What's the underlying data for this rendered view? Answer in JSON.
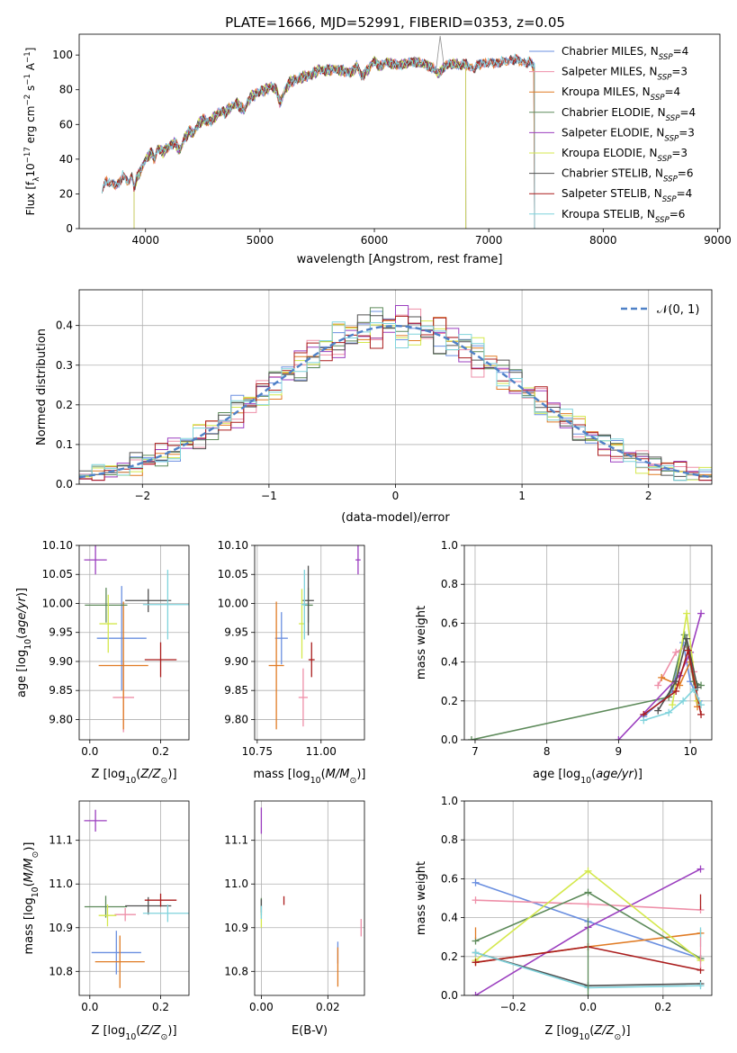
{
  "figure_title": "PLATE=1666, MJD=52991, FIBERID=0353, z=0.05",
  "palette": [
    "#6a8fe0",
    "#ee8fa8",
    "#e07b24",
    "#5d8a5a",
    "#9b3fbf",
    "#d4e84c",
    "#505050",
    "#aa1c1c",
    "#7fd3dc"
  ],
  "chart_data": [
    {
      "id": "spectrum",
      "type": "line",
      "title": "PLATE=1666, MJD=52991, FIBERID=0353, z=0.05",
      "xlabel": "wavelength [Angstrom, rest frame]",
      "ylabel": "Flux [f",
      "ylabel_suffix": "10",
      "ylabel_exp": "−17",
      "ylabel_units": " erg cm",
      "xlim": [
        3420,
        9020
      ],
      "ylim": [
        0,
        112
      ],
      "xticks": [
        4000,
        5000,
        6000,
        7000,
        8000,
        9000
      ],
      "yticks": [
        0,
        20,
        40,
        60,
        80,
        100
      ],
      "legend_position": "right",
      "spectrum_points": [
        [
          3620,
          22
        ],
        [
          3650,
          28
        ],
        [
          3700,
          25
        ],
        [
          3760,
          26
        ],
        [
          3800,
          30
        ],
        [
          3850,
          27
        ],
        [
          3880,
          31
        ],
        [
          3900,
          24
        ],
        [
          3930,
          30
        ],
        [
          3960,
          34
        ],
        [
          4000,
          40
        ],
        [
          4050,
          44
        ],
        [
          4080,
          40
        ],
        [
          4110,
          47
        ],
        [
          4150,
          44
        ],
        [
          4200,
          47
        ],
        [
          4250,
          50
        ],
        [
          4300,
          45
        ],
        [
          4340,
          52
        ],
        [
          4380,
          56
        ],
        [
          4420,
          55
        ],
        [
          4460,
          60
        ],
        [
          4500,
          63
        ],
        [
          4550,
          61
        ],
        [
          4600,
          64
        ],
        [
          4650,
          67
        ],
        [
          4700,
          67
        ],
        [
          4750,
          70
        ],
        [
          4800,
          72
        ],
        [
          4860,
          68
        ],
        [
          4920,
          76
        ],
        [
          4980,
          78
        ],
        [
          5050,
          80
        ],
        [
          5100,
          82
        ],
        [
          5150,
          79
        ],
        [
          5175,
          72
        ],
        [
          5220,
          80
        ],
        [
          5270,
          85
        ],
        [
          5330,
          86
        ],
        [
          5400,
          88
        ],
        [
          5460,
          89
        ],
        [
          5520,
          92
        ],
        [
          5580,
          91
        ],
        [
          5650,
          92
        ],
        [
          5720,
          91
        ],
        [
          5800,
          90
        ],
        [
          5850,
          94
        ],
        [
          5890,
          88
        ],
        [
          5950,
          92
        ],
        [
          6000,
          97
        ],
        [
          6050,
          93
        ],
        [
          6100,
          96
        ],
        [
          6150,
          95
        ],
        [
          6200,
          94
        ],
        [
          6280,
          95
        ],
        [
          6350,
          96
        ],
        [
          6420,
          95
        ],
        [
          6500,
          93
        ],
        [
          6563,
          89
        ],
        [
          6620,
          94
        ],
        [
          6700,
          95
        ],
        [
          6760,
          94
        ],
        [
          6800,
          95
        ],
        [
          6870,
          92
        ],
        [
          6950,
          96
        ],
        [
          7020,
          95
        ],
        [
          7080,
          96
        ],
        [
          7150,
          96
        ],
        [
          7200,
          98
        ],
        [
          7250,
          97
        ],
        [
          7300,
          96
        ],
        [
          7350,
          96
        ],
        [
          7400,
          93
        ]
      ],
      "series": [
        {
          "name": "Chabrier MILES",
          "n": "4",
          "start": 3640,
          "end": 7400
        },
        {
          "name": "Salpeter MILES",
          "n": "3",
          "start": 3640,
          "end": 7400
        },
        {
          "name": "Kroupa MILES",
          "n": "4",
          "start": 3640,
          "end": 7400
        },
        {
          "name": "Chabrier ELODIE",
          "n": "4",
          "start": 3900,
          "end": 6800
        },
        {
          "name": "Salpeter ELODIE",
          "n": "3",
          "start": 3900,
          "end": 6800
        },
        {
          "name": "Kroupa ELODIE",
          "n": "3",
          "start": 3900,
          "end": 6800
        },
        {
          "name": "Chabrier STELIB",
          "n": "6",
          "start": 3620,
          "end": 7400
        },
        {
          "name": "Salpeter STELIB",
          "n": "4",
          "start": 3620,
          "end": 7400
        },
        {
          "name": "Kroupa STELIB",
          "n": "6",
          "start": 3620,
          "end": 7400
        }
      ]
    },
    {
      "id": "residual_hist",
      "type": "line",
      "xlabel": "(data-model)/error",
      "ylabel": "Normed distribution",
      "xlim": [
        -2.5,
        2.5
      ],
      "ylim": [
        0,
        0.49
      ],
      "xticks": [
        -2,
        -1,
        0,
        1,
        2
      ],
      "yticks": [
        0.0,
        0.1,
        0.2,
        0.3,
        0.4
      ],
      "grid": true,
      "legend_position": "upper right",
      "legend": [
        "𝒩(0, 1)"
      ],
      "bin_width": 0.1
    },
    {
      "id": "age_vs_Z",
      "type": "scatter",
      "xlabel": "Z [log",
      "ylabel": "age  [log",
      "xlim": [
        -0.03,
        0.28
      ],
      "ylim": [
        9.765,
        10.1
      ],
      "xticks": [
        0.0,
        0.2
      ],
      "yticks": [
        9.8,
        9.85,
        9.9,
        9.95,
        10.0,
        10.05,
        10.1
      ],
      "grid": true,
      "points": [
        {
          "x": 0.09,
          "y": 9.94,
          "xerr": 0.07,
          "yerr": 0.09
        },
        {
          "x": 0.095,
          "y": 9.838,
          "xerr": 0.03,
          "yerr": 0.06
        },
        {
          "x": 0.095,
          "y": 9.893,
          "xerr": 0.07,
          "yerr": 0.11
        },
        {
          "x": 0.046,
          "y": 9.997,
          "xerr": 0.06,
          "yerr": 0.03
        },
        {
          "x": 0.016,
          "y": 10.075,
          "xerr": 0.032,
          "yerr": 0.025
        },
        {
          "x": 0.052,
          "y": 9.965,
          "xerr": 0.025,
          "yerr": 0.05
        },
        {
          "x": 0.165,
          "y": 10.005,
          "xerr": 0.065,
          "yerr": 0.02
        },
        {
          "x": 0.2,
          "y": 9.903,
          "xerr": 0.045,
          "yerr": 0.03
        },
        {
          "x": 0.22,
          "y": 9.998,
          "xerr": 0.07,
          "yerr": 0.06
        }
      ]
    },
    {
      "id": "age_vs_mass",
      "type": "scatter",
      "xlabel": "mass [log",
      "xlim": [
        10.74,
        11.17
      ],
      "ylim": [
        9.765,
        10.1
      ],
      "xticks": [
        10.75,
        11.0
      ],
      "yticks": [
        9.8,
        9.85,
        9.9,
        9.95,
        10.0,
        10.05,
        10.1
      ],
      "grid": true,
      "points": [
        {
          "x": 10.845,
          "y": 9.94,
          "xerr": 0.025,
          "yerr": 0.045
        },
        {
          "x": 10.93,
          "y": 9.838,
          "xerr": 0.018,
          "yerr": 0.05
        },
        {
          "x": 10.825,
          "y": 9.893,
          "xerr": 0.03,
          "yerr": 0.11
        },
        {
          "x": 10.95,
          "y": 9.997,
          "xerr": 0.018,
          "yerr": 0.03
        },
        {
          "x": 11.145,
          "y": 10.075,
          "xerr": 0.01,
          "yerr": 0.025
        },
        {
          "x": 10.925,
          "y": 9.965,
          "xerr": 0.012,
          "yerr": 0.06
        },
        {
          "x": 10.95,
          "y": 10.005,
          "xerr": 0.022,
          "yerr": 0.06
        },
        {
          "x": 10.963,
          "y": 9.903,
          "xerr": 0.012,
          "yerr": 0.03
        },
        {
          "x": 10.935,
          "y": 9.998,
          "xerr": 0.012,
          "yerr": 0.06
        }
      ]
    },
    {
      "id": "mass_weight_vs_age",
      "type": "line",
      "xlabel": "age  [log",
      "ylabel": "mass weight",
      "xlim": [
        6.85,
        10.3
      ],
      "ylim": [
        0,
        1.0
      ],
      "xticks": [
        7,
        8,
        9,
        10
      ],
      "yticks": [
        0.0,
        0.2,
        0.4,
        0.6,
        0.8,
        1.0
      ],
      "grid": true,
      "series": [
        {
          "x": [
            9.35,
            9.75,
            9.9,
            10.0,
            10.12
          ],
          "y": [
            0.12,
            0.25,
            0.5,
            0.3,
            0.2
          ]
        },
        {
          "x": [
            9.55,
            9.8,
            9.95,
            10.05
          ],
          "y": [
            0.28,
            0.45,
            0.48,
            0.35
          ]
        },
        {
          "x": [
            9.6,
            9.85,
            10.0,
            10.1
          ],
          "y": [
            0.32,
            0.28,
            0.4,
            0.17
          ]
        },
        {
          "x": [
            6.95,
            9.7,
            9.92,
            10.05,
            10.15
          ],
          "y": [
            0.0,
            0.22,
            0.54,
            0.3,
            0.28
          ]
        },
        {
          "x": [
            9.0,
            9.85,
            10.0,
            10.15
          ],
          "y": [
            0.0,
            0.33,
            0.45,
            0.65
          ]
        },
        {
          "x": [
            9.75,
            9.95,
            10.1
          ],
          "y": [
            0.18,
            0.65,
            0.2
          ]
        },
        {
          "x": [
            9.55,
            9.8,
            9.95,
            10.1
          ],
          "y": [
            0.15,
            0.3,
            0.52,
            0.27
          ]
        },
        {
          "x": [
            9.35,
            9.8,
            9.97,
            10.15
          ],
          "y": [
            0.13,
            0.25,
            0.46,
            0.13
          ]
        },
        {
          "x": [
            9.35,
            9.7,
            9.9,
            10.05,
            10.15
          ],
          "y": [
            0.1,
            0.14,
            0.2,
            0.26,
            0.18
          ]
        }
      ]
    },
    {
      "id": "mass_vs_Z",
      "type": "scatter",
      "xlabel": "Z [log",
      "ylabel": "mass [log",
      "xlim": [
        -0.03,
        0.28
      ],
      "ylim": [
        10.745,
        11.19
      ],
      "xticks": [
        0.0,
        0.2
      ],
      "yticks": [
        10.8,
        10.9,
        11.0,
        11.1
      ],
      "grid": true,
      "points": [
        {
          "x": 0.075,
          "y": 10.843,
          "xerr": 0.07,
          "yerr": 0.05
        },
        {
          "x": 0.1,
          "y": 10.93,
          "xerr": 0.03,
          "yerr": 0.015
        },
        {
          "x": 0.085,
          "y": 10.822,
          "xerr": 0.07,
          "yerr": 0.06
        },
        {
          "x": 0.045,
          "y": 10.948,
          "xerr": 0.06,
          "yerr": 0.025
        },
        {
          "x": 0.016,
          "y": 11.145,
          "xerr": 0.032,
          "yerr": 0.025
        },
        {
          "x": 0.05,
          "y": 10.928,
          "xerr": 0.025,
          "yerr": 0.025
        },
        {
          "x": 0.165,
          "y": 10.95,
          "xerr": 0.065,
          "yerr": 0.02
        },
        {
          "x": 0.2,
          "y": 10.963,
          "xerr": 0.045,
          "yerr": 0.015
        },
        {
          "x": 0.22,
          "y": 10.933,
          "xerr": 0.07,
          "yerr": 0.02
        }
      ]
    },
    {
      "id": "mass_vs_ebv",
      "type": "scatter",
      "xlabel": "E(B-V)",
      "xlim": [
        -0.002,
        0.031
      ],
      "ylim": [
        10.745,
        11.19
      ],
      "xticks": [
        0.0,
        0.02
      ],
      "yticks": [
        10.8,
        10.9,
        11.0,
        11.1
      ],
      "grid": true,
      "points": [
        {
          "x": 0.023,
          "y": 10.843,
          "xerr": 0,
          "yerr": 0.025
        },
        {
          "x": 0.03,
          "y": 10.9,
          "xerr": 0,
          "yerr": 0.02
        },
        {
          "x": 0.023,
          "y": 10.81,
          "xerr": 0,
          "yerr": 0.045
        },
        {
          "x": 0.0,
          "y": 10.948,
          "xerr": 0,
          "yerr": 0.02
        },
        {
          "x": 0.0,
          "y": 11.145,
          "xerr": 0,
          "yerr": 0.03
        },
        {
          "x": 0.0,
          "y": 10.92,
          "xerr": 0,
          "yerr": 0.02
        },
        {
          "x": 0.0,
          "y": 10.95,
          "xerr": 0,
          "yerr": 0.015
        },
        {
          "x": 0.0068,
          "y": 10.962,
          "xerr": 0,
          "yerr": 0.01
        },
        {
          "x": 0.0,
          "y": 10.935,
          "xerr": 0,
          "yerr": 0.015
        }
      ]
    },
    {
      "id": "mass_weight_vs_Z",
      "type": "line",
      "xlabel": "Z [log",
      "ylabel": "mass weight",
      "xlim": [
        -0.33,
        0.33
      ],
      "ylim": [
        0,
        1.0
      ],
      "xticks": [
        -0.2,
        0.0,
        0.2
      ],
      "yticks": [
        0.0,
        0.2,
        0.4,
        0.6,
        0.8,
        1.0
      ],
      "grid": true,
      "series": [
        {
          "x": [
            -0.3,
            0.0,
            0.3
          ],
          "y": [
            0.58,
            0.38,
            0.19
          ]
        },
        {
          "x": [
            -0.3,
            0.0,
            0.3
          ],
          "y": [
            0.49,
            0.47,
            0.44
          ]
        },
        {
          "x": [
            -0.3,
            0.0,
            0.3
          ],
          "y": [
            0.17,
            0.25,
            0.32
          ]
        },
        {
          "x": [
            -0.3,
            0.0,
            0.3
          ],
          "y": [
            0.28,
            0.53,
            0.19
          ]
        },
        {
          "x": [
            -0.3,
            0.0,
            0.3
          ],
          "y": [
            0.0,
            0.35,
            0.65
          ]
        },
        {
          "x": [
            -0.3,
            0.0,
            0.3
          ],
          "y": [
            0.18,
            0.64,
            0.18
          ]
        },
        {
          "x": [
            -0.3,
            0.0,
            0.3
          ],
          "y": [
            0.22,
            0.05,
            0.06
          ]
        },
        {
          "x": [
            -0.3,
            0.0,
            0.3
          ],
          "y": [
            0.17,
            0.25,
            0.13
          ]
        },
        {
          "x": [
            -0.3,
            0.0,
            0.3
          ],
          "y": [
            0.22,
            0.04,
            0.05
          ]
        }
      ]
    }
  ]
}
